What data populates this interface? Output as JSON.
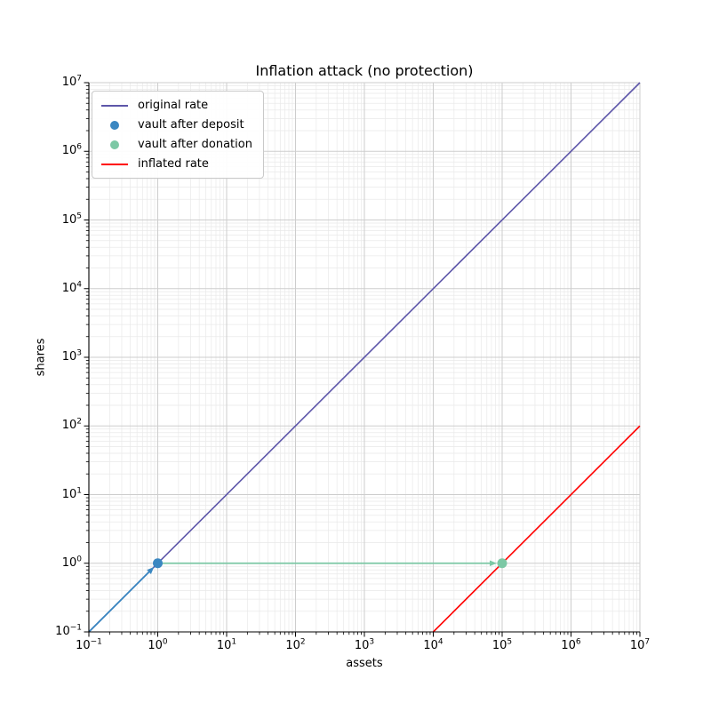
{
  "window": {
    "background": "#ffffff"
  },
  "chart_data": {
    "type": "line",
    "title": "Inflation attack (no protection)",
    "xlabel": "assets",
    "ylabel": "shares",
    "x_scale": "log",
    "y_scale": "log",
    "xlim": [
      0.1,
      10000000
    ],
    "ylim": [
      0.1,
      10000000
    ],
    "x_tick_exponents": [
      -1,
      0,
      1,
      2,
      3,
      4,
      5,
      6,
      7
    ],
    "y_tick_exponents": [
      -1,
      0,
      1,
      2,
      3,
      4,
      5,
      6,
      7
    ],
    "grid": {
      "major_color": "#cdcdcd",
      "minor_color": "#e9e9e9",
      "major_on": true,
      "minor_on": true
    },
    "axis_color": "#000000",
    "series": [
      {
        "name": "original rate",
        "kind": "line",
        "color": "#5d56a9",
        "width": 1.6,
        "points": [
          [
            0.1,
            0.1
          ],
          [
            10000000,
            10000000
          ]
        ]
      },
      {
        "name": "deposit arrow",
        "kind": "arrow",
        "color": "#3a87c1",
        "width": 1.8,
        "points": [
          [
            0.1,
            0.1
          ],
          [
            1,
            1
          ]
        ]
      },
      {
        "name": "donation arrow",
        "kind": "arrow",
        "color": "#7cc8a5",
        "width": 1.8,
        "points": [
          [
            1,
            1
          ],
          [
            100000,
            1
          ]
        ]
      },
      {
        "name": "inflated rate",
        "kind": "line",
        "color": "#ff0000",
        "width": 1.6,
        "points": [
          [
            10000,
            0.1
          ],
          [
            10000000,
            100
          ]
        ]
      },
      {
        "name": "vault after deposit",
        "kind": "scatter",
        "color": "#3a87c1",
        "size": 11,
        "points": [
          [
            1,
            1
          ]
        ]
      },
      {
        "name": "vault after donation",
        "kind": "scatter",
        "color": "#7cc8a5",
        "size": 11,
        "points": [
          [
            100000,
            1
          ]
        ]
      }
    ],
    "legend": {
      "position": "upper left",
      "entries": [
        {
          "label": "original rate",
          "marker": "line",
          "color": "#5d56a9"
        },
        {
          "label": "vault after deposit",
          "marker": "dot",
          "color": "#3a87c1"
        },
        {
          "label": "vault after donation",
          "marker": "dot",
          "color": "#7cc8a5"
        },
        {
          "label": "inflated rate",
          "marker": "line",
          "color": "#ff0000"
        }
      ]
    }
  }
}
